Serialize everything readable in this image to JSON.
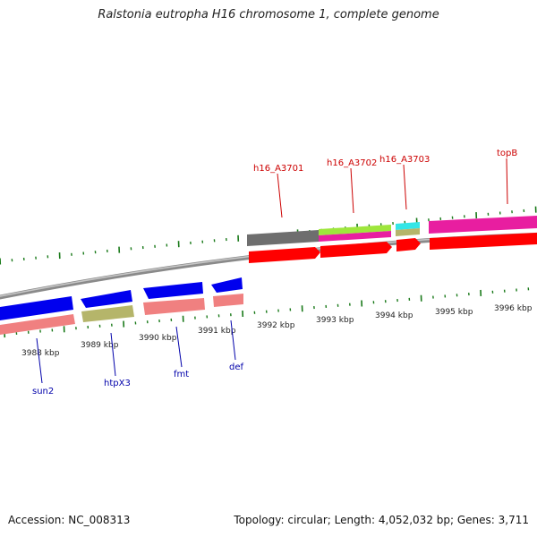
{
  "title": "Ralstonia eutropha H16 chromosome 1, complete genome",
  "footer": {
    "accession": "Accession: NC_008313",
    "summary": "Topology: circular; Length: 4,052,032 bp; Genes: 3,711"
  },
  "scale_labels": [
    "3988 kbp",
    "3989 kbp",
    "3990 kbp",
    "3991 kbp",
    "3992 kbp",
    "3993 kbp",
    "3994 kbp",
    "3995 kbp",
    "3996 kbp"
  ],
  "genes_forward": [
    "h16_A3701",
    "h16_A3702",
    "h16_A3703",
    "topB"
  ],
  "genes_reverse": [
    "sun2",
    "htpX3",
    "fmt",
    "def"
  ],
  "colors": {
    "backbone": "#8a8a8a",
    "tick": "#1a7a1a",
    "cds_forward": "#ff0000",
    "cds_reverse_light": "#f08080",
    "gene_reverse": "#0000ee",
    "label_forward": "#cc0000",
    "label_reverse": "#0000aa",
    "magenta": "#e81ea0",
    "olive": "#b5b56a",
    "gray": "#6e6e6e",
    "lime": "#9ee63c",
    "cyan": "#33e6e6"
  }
}
